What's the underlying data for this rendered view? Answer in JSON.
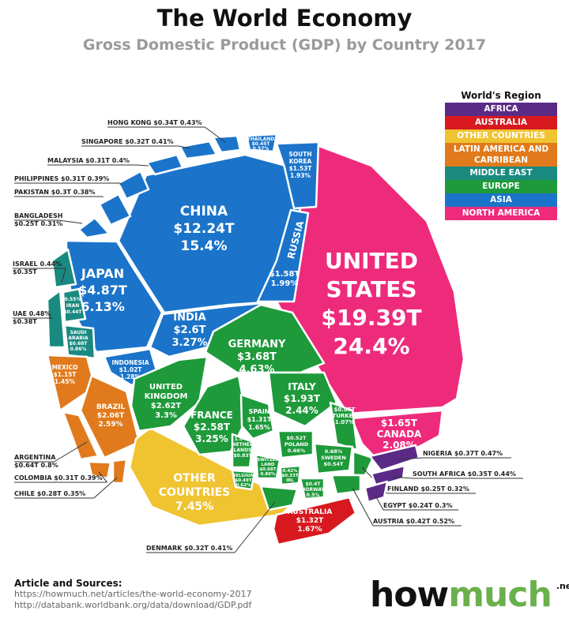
{
  "title": "The World Economy",
  "subtitle": "Gross Domestic Product (GDP) by Country 2017",
  "legend": {
    "title": "World's Region",
    "items": [
      {
        "label": "AFRICA",
        "color": "#5b2a86"
      },
      {
        "label": "AUSTRALIA",
        "color": "#d7191f"
      },
      {
        "label": "OTHER COUNTRIES",
        "color": "#f0c330"
      },
      {
        "label": "LATIN AMERICA AND CARRIBEAN",
        "color": "#e07a1c"
      },
      {
        "label": "MIDDLE EAST",
        "color": "#1a8a80"
      },
      {
        "label": "EUROPE",
        "color": "#1e9a3a"
      },
      {
        "label": "ASIA",
        "color": "#1b74c9"
      },
      {
        "label": "NORTH AMERICA",
        "color": "#ee2a7b"
      }
    ]
  },
  "chart_data": {
    "type": "voronoi treemap",
    "countries": [
      {
        "name": "UNITED STATES",
        "gdp": "$19.39T",
        "share": "24.4%",
        "region": "NORTH AMERICA"
      },
      {
        "name": "CANADA",
        "gdp": "$1.65T",
        "share": "2.08%",
        "region": "NORTH AMERICA"
      },
      {
        "name": "CHINA",
        "gdp": "$12.24T",
        "share": "15.4%",
        "region": "ASIA"
      },
      {
        "name": "JAPAN",
        "gdp": "$4.87T",
        "share": "6.13%",
        "region": "ASIA"
      },
      {
        "name": "INDIA",
        "gdp": "$2.6T",
        "share": "3.27%",
        "region": "ASIA"
      },
      {
        "name": "RUSSIA",
        "gdp": "$1.58T",
        "share": "1.99%",
        "region": "ASIA"
      },
      {
        "name": "SOUTH KOREA",
        "gdp": "$1.53T",
        "share": "1.93%",
        "region": "ASIA"
      },
      {
        "name": "INDONESIA",
        "gdp": "$1.02T",
        "share": "1.28%",
        "region": "ASIA"
      },
      {
        "name": "THAILAND",
        "gdp": "$0.45T",
        "share": "0.57%",
        "region": "ASIA"
      },
      {
        "name": "HONG KONG",
        "gdp": "$0.34T",
        "share": "0.43%",
        "region": "ASIA"
      },
      {
        "name": "SINGAPORE",
        "gdp": "$0.32T",
        "share": "0.41%",
        "region": "ASIA"
      },
      {
        "name": "MALAYSIA",
        "gdp": "$0.31T",
        "share": "0.4%",
        "region": "ASIA"
      },
      {
        "name": "PHILIPPINES",
        "gdp": "$0.31T",
        "share": "0.39%",
        "region": "ASIA"
      },
      {
        "name": "PAKISTAN",
        "gdp": "$0.3T",
        "share": "0.38%",
        "region": "ASIA"
      },
      {
        "name": "BANGLADESH",
        "gdp": "$0.25T",
        "share": "0.31%",
        "region": "ASIA"
      },
      {
        "name": "ISRAEL",
        "gdp": "$0.35T",
        "share": "0.44%",
        "region": "MIDDLE EAST"
      },
      {
        "name": "UAE",
        "gdp": "$0.38T",
        "share": "0.48%",
        "region": "MIDDLE EAST"
      },
      {
        "name": "IRAN",
        "gdp": "$0.44T",
        "share": "0.55%",
        "region": "MIDDLE EAST"
      },
      {
        "name": "SAUDI ARABIA",
        "gdp": "$0.68T",
        "share": "0.86%",
        "region": "MIDDLE EAST"
      },
      {
        "name": "MEXICO",
        "gdp": "$1.15T",
        "share": "1.45%",
        "region": "LATIN AMERICA AND CARRIBEAN"
      },
      {
        "name": "BRAZIL",
        "gdp": "$2.06T",
        "share": "2.59%",
        "region": "LATIN AMERICA AND CARRIBEAN"
      },
      {
        "name": "ARGENTINA",
        "gdp": "$0.64T",
        "share": "0.8%",
        "region": "LATIN AMERICA AND CARRIBEAN"
      },
      {
        "name": "COLOMBIA",
        "gdp": "$0.31T",
        "share": "0.39%",
        "region": "LATIN AMERICA AND CARRIBEAN"
      },
      {
        "name": "CHILE",
        "gdp": "$0.28T",
        "share": "0.35%",
        "region": "LATIN AMERICA AND CARRIBEAN"
      },
      {
        "name": "OTHER COUNTRIES",
        "gdp": "",
        "share": "7.45%",
        "region": "OTHER COUNTRIES"
      },
      {
        "name": "GERMANY",
        "gdp": "$3.68T",
        "share": "4.63%",
        "region": "EUROPE"
      },
      {
        "name": "UNITED KINGDOM",
        "gdp": "$2.62T",
        "share": "3.3%",
        "region": "EUROPE"
      },
      {
        "name": "FRANCE",
        "gdp": "$2.58T",
        "share": "3.25%",
        "region": "EUROPE"
      },
      {
        "name": "ITALY",
        "gdp": "$1.93T",
        "share": "2.44%",
        "region": "EUROPE"
      },
      {
        "name": "SPAIN",
        "gdp": "$1.31T",
        "share": "1.65%",
        "region": "EUROPE"
      },
      {
        "name": "NETHERLANDS",
        "gdp": "$0.83T",
        "share": "1.04%",
        "region": "EUROPE"
      },
      {
        "name": "TURKEY",
        "gdp": "$0.85T",
        "share": "1.07%",
        "region": "EUROPE"
      },
      {
        "name": "POLAND",
        "gdp": "$0.52T",
        "share": "0.66%",
        "region": "EUROPE"
      },
      {
        "name": "SWEDEN",
        "gdp": "$0.54T",
        "share": "0.68%",
        "region": "EUROPE"
      },
      {
        "name": "SWITZERLAND",
        "gdp": "$0.68T",
        "share": "0.86%",
        "region": "EUROPE"
      },
      {
        "name": "IRL",
        "gdp": "$0.33T",
        "share": "0.42%",
        "region": "EUROPE"
      },
      {
        "name": "BELGIUM",
        "gdp": "$0.49T",
        "share": "0.62%",
        "region": "EUROPE"
      },
      {
        "name": "NORWAY",
        "gdp": "$0.4T",
        "share": "0.5%",
        "region": "EUROPE"
      },
      {
        "name": "DENMARK",
        "gdp": "$0.32T",
        "share": "0.41%",
        "region": "EUROPE"
      },
      {
        "name": "FINLAND",
        "gdp": "$0.25T",
        "share": "0.32%",
        "region": "EUROPE"
      },
      {
        "name": "AUSTRIA",
        "gdp": "$0.42T",
        "share": "0.52%",
        "region": "EUROPE"
      },
      {
        "name": "AUSTRALIA",
        "gdp": "$1.32T",
        "share": "1.67%",
        "region": "AUSTRALIA"
      },
      {
        "name": "NIGERIA",
        "gdp": "$0.37T",
        "share": "0.47%",
        "region": "AFRICA"
      },
      {
        "name": "SOUTH AFRICA",
        "gdp": "$0.35T",
        "share": "0.44%",
        "region": "AFRICA"
      },
      {
        "name": "EGYPT",
        "gdp": "$0.24T",
        "share": "0.3%",
        "region": "AFRICA"
      }
    ]
  },
  "sources": {
    "heading": "Article and Sources:",
    "lines": [
      "https://howmuch.net/articles/the-world-economy-2017",
      "http://databank.worldbank.org/data/download/GDP.pdf"
    ]
  },
  "logo": {
    "part1": "how",
    "part2": "much",
    "suffix": ".net"
  }
}
